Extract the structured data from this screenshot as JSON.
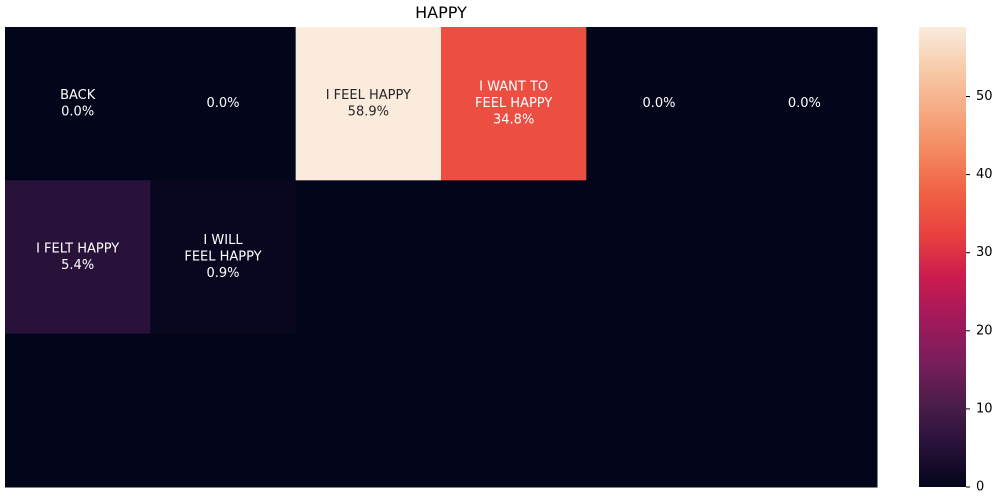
{
  "chart_data": {
    "type": "heatmap",
    "title": "HAPPY",
    "rows": 3,
    "cols": 6,
    "cells": [
      {
        "row": 0,
        "col": 0,
        "label": [
          "BACK"
        ],
        "percent": "0.0%",
        "value": 0.0
      },
      {
        "row": 0,
        "col": 1,
        "label": [],
        "percent": "0.0%",
        "value": 0.0
      },
      {
        "row": 0,
        "col": 2,
        "label": [
          "I FEEL HAPPY"
        ],
        "percent": "58.9%",
        "value": 58.9
      },
      {
        "row": 0,
        "col": 3,
        "label": [
          "I WANT TO",
          "FEEL HAPPY"
        ],
        "percent": "34.8%",
        "value": 34.8
      },
      {
        "row": 0,
        "col": 4,
        "label": [],
        "percent": "0.0%",
        "value": 0.0
      },
      {
        "row": 0,
        "col": 5,
        "label": [],
        "percent": "0.0%",
        "value": 0.0
      },
      {
        "row": 1,
        "col": 0,
        "label": [
          "I FELT HAPPY"
        ],
        "percent": "5.4%",
        "value": 5.4
      },
      {
        "row": 1,
        "col": 1,
        "label": [
          "I WILL",
          "FEEL HAPPY"
        ],
        "percent": "0.9%",
        "value": 0.9
      },
      {
        "row": 1,
        "col": 2,
        "label": [],
        "percent": "",
        "value": 0
      },
      {
        "row": 1,
        "col": 3,
        "label": [],
        "percent": "",
        "value": 0
      },
      {
        "row": 1,
        "col": 4,
        "label": [],
        "percent": "",
        "value": 0
      },
      {
        "row": 1,
        "col": 5,
        "label": [],
        "percent": "",
        "value": 0
      },
      {
        "row": 2,
        "col": 0,
        "label": [],
        "percent": "",
        "value": 0
      },
      {
        "row": 2,
        "col": 1,
        "label": [],
        "percent": "",
        "value": 0
      },
      {
        "row": 2,
        "col": 2,
        "label": [],
        "percent": "",
        "value": 0
      },
      {
        "row": 2,
        "col": 3,
        "label": [],
        "percent": "",
        "value": 0
      },
      {
        "row": 2,
        "col": 4,
        "label": [],
        "percent": "",
        "value": 0
      },
      {
        "row": 2,
        "col": 5,
        "label": [],
        "percent": "",
        "value": 0
      }
    ],
    "colorbar": {
      "min": 0,
      "max": 58.9,
      "ticks": [
        0,
        10,
        20,
        30,
        40,
        50
      ],
      "colormap": "rocket",
      "stops": [
        "#03051a",
        "#28123a",
        "#4c1d4b",
        "#7a1d5c",
        "#a11a5b",
        "#cb1b4f",
        "#e83f3f",
        "#f06043",
        "#f4875e",
        "#f6aa82",
        "#f7cbaa",
        "#faebdd"
      ]
    }
  }
}
